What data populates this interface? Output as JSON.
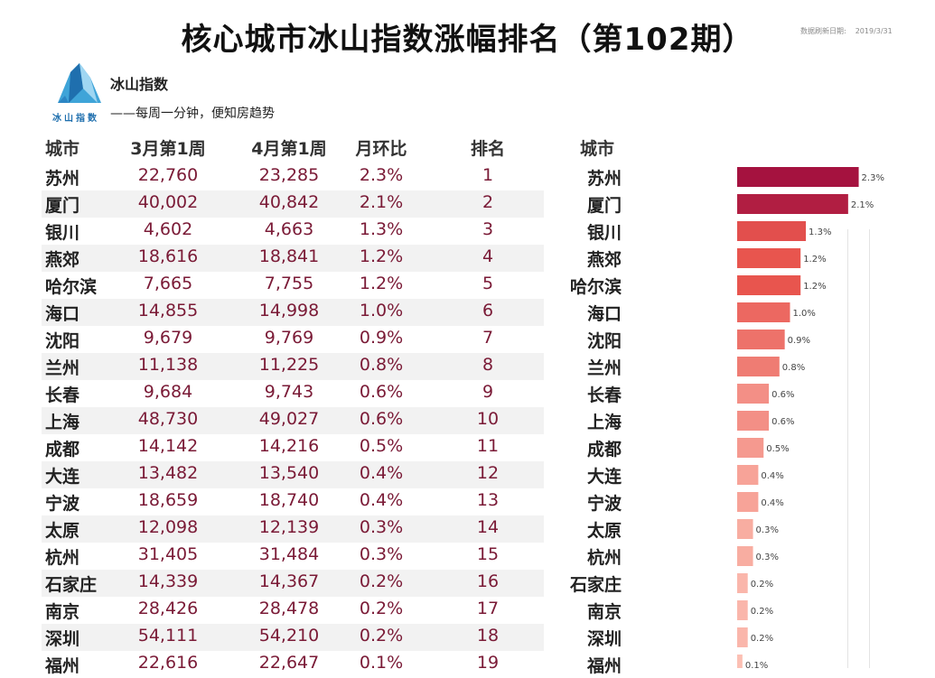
{
  "title": "核心城市冰山指数涨幅排名（第102期）",
  "update_label": "数据刷新日期:",
  "update_date": "2019/3/31",
  "brand": {
    "name": "冰山指数",
    "logo_text": "冰山指数",
    "slogan": "——每周一分钟，便知房趋势"
  },
  "table": {
    "headers": [
      "城市",
      "3月第1周",
      "4月第1周",
      "月环比",
      "排名"
    ],
    "rows": [
      {
        "city": "苏州",
        "mar": "22,760",
        "apr": "23,285",
        "mom": "2.3%",
        "rank": "1"
      },
      {
        "city": "厦门",
        "mar": "40,002",
        "apr": "40,842",
        "mom": "2.1%",
        "rank": "2"
      },
      {
        "city": "银川",
        "mar": "4,602",
        "apr": "4,663",
        "mom": "1.3%",
        "rank": "3"
      },
      {
        "city": "燕郊",
        "mar": "18,616",
        "apr": "18,841",
        "mom": "1.2%",
        "rank": "4"
      },
      {
        "city": "哈尔滨",
        "mar": "7,665",
        "apr": "7,755",
        "mom": "1.2%",
        "rank": "5"
      },
      {
        "city": "海口",
        "mar": "14,855",
        "apr": "14,998",
        "mom": "1.0%",
        "rank": "6"
      },
      {
        "city": "沈阳",
        "mar": "9,679",
        "apr": "9,769",
        "mom": "0.9%",
        "rank": "7"
      },
      {
        "city": "兰州",
        "mar": "11,138",
        "apr": "11,225",
        "mom": "0.8%",
        "rank": "8"
      },
      {
        "city": "长春",
        "mar": "9,684",
        "apr": "9,743",
        "mom": "0.6%",
        "rank": "9"
      },
      {
        "city": "上海",
        "mar": "48,730",
        "apr": "49,027",
        "mom": "0.6%",
        "rank": "10"
      },
      {
        "city": "成都",
        "mar": "14,142",
        "apr": "14,216",
        "mom": "0.5%",
        "rank": "11"
      },
      {
        "city": "大连",
        "mar": "13,482",
        "apr": "13,540",
        "mom": "0.4%",
        "rank": "12"
      },
      {
        "city": "宁波",
        "mar": "18,659",
        "apr": "18,740",
        "mom": "0.4%",
        "rank": "13"
      },
      {
        "city": "太原",
        "mar": "12,098",
        "apr": "12,139",
        "mom": "0.3%",
        "rank": "14"
      },
      {
        "city": "杭州",
        "mar": "31,405",
        "apr": "31,484",
        "mom": "0.3%",
        "rank": "15"
      },
      {
        "city": "石家庄",
        "mar": "14,339",
        "apr": "14,367",
        "mom": "0.2%",
        "rank": "16"
      },
      {
        "city": "南京",
        "mar": "28,426",
        "apr": "28,478",
        "mom": "0.2%",
        "rank": "17"
      },
      {
        "city": "深圳",
        "mar": "54,111",
        "apr": "54,210",
        "mom": "0.2%",
        "rank": "18"
      },
      {
        "city": "福州",
        "mar": "22,616",
        "apr": "22,647",
        "mom": "0.1%",
        "rank": "19"
      }
    ]
  },
  "chart_data": {
    "type": "bar",
    "orientation": "horizontal",
    "category_header": "城市",
    "categories": [
      "苏州",
      "厦门",
      "银川",
      "燕郊",
      "哈尔滨",
      "海口",
      "沈阳",
      "兰州",
      "长春",
      "上海",
      "成都",
      "大连",
      "宁波",
      "太原",
      "杭州",
      "石家庄",
      "南京",
      "深圳",
      "福州"
    ],
    "values": [
      2.3,
      2.1,
      1.3,
      1.2,
      1.2,
      1.0,
      0.9,
      0.8,
      0.6,
      0.6,
      0.5,
      0.4,
      0.4,
      0.3,
      0.3,
      0.2,
      0.2,
      0.2,
      0.1
    ],
    "value_labels": [
      "2.3%",
      "2.1%",
      "1.3%",
      "1.2%",
      "1.2%",
      "1.0%",
      "0.9%",
      "0.8%",
      "0.6%",
      "0.6%",
      "0.5%",
      "0.4%",
      "0.4%",
      "0.3%",
      "0.3%",
      "0.2%",
      "0.2%",
      "0.2%",
      "0.1%"
    ],
    "unit": "%",
    "colors": {
      "high": "#a5123f",
      "mid": "#e8554e",
      "low": "#fcc0b4"
    }
  }
}
